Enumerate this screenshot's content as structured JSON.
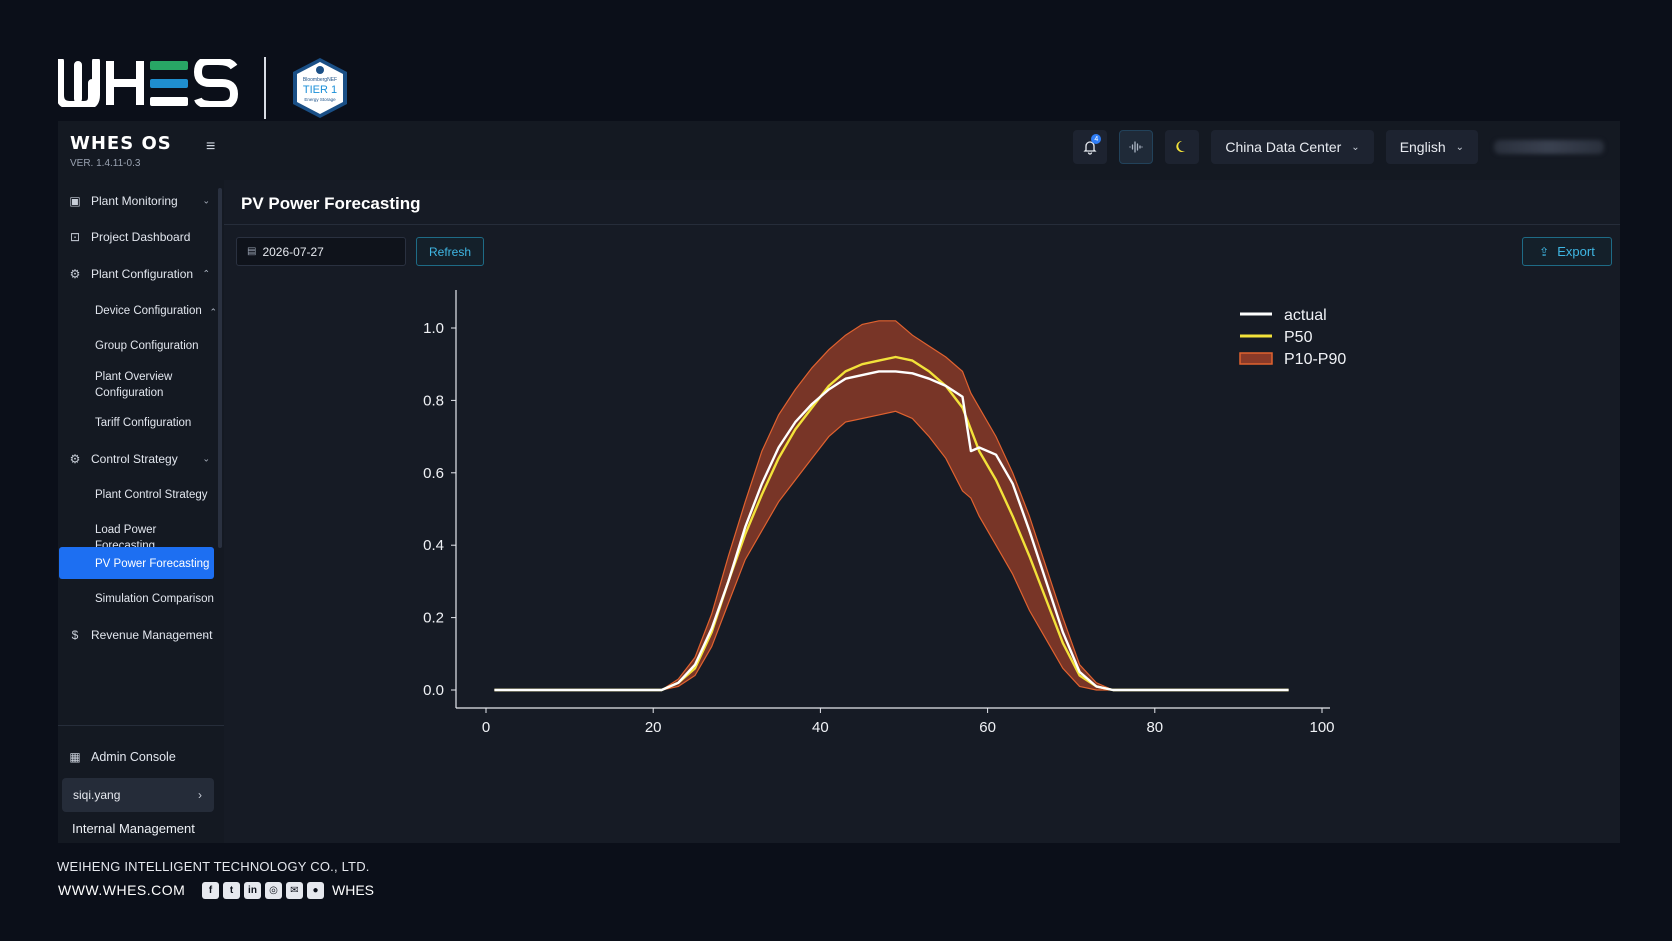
{
  "brand": {
    "logo_text": "WHES",
    "badge_line1": "BloombergNEF",
    "badge_line2": "TIER 1",
    "badge_line3": "Energy Storage"
  },
  "topbar": {
    "os_title": "WHES OS",
    "version": "VER. 1.4.11-0.3",
    "notification_count": "4",
    "data_center": "China Data Center",
    "language": "English"
  },
  "sidebar": {
    "items": [
      {
        "label": "Plant Monitoring",
        "icon": "monitor-icon"
      },
      {
        "label": "Project Dashboard",
        "icon": "dashboard-icon"
      },
      {
        "label": "Plant Configuration",
        "icon": "gear-icon"
      },
      {
        "label": "Control Strategy",
        "icon": "strategy-icon"
      },
      {
        "label": "Revenue Management",
        "icon": "dollar-icon"
      },
      {
        "label": "Admin Console",
        "icon": "grid-icon"
      }
    ],
    "sub_items": [
      "Device Configuration",
      "Group Configuration",
      "Plant Overview Configuration",
      "Tariff Configuration",
      "Plant Control Strategy",
      "Load Power Forecasting",
      "PV Power Forecasting",
      "Simulation Comparison"
    ],
    "user": "siqi.yang",
    "internal": "Internal Management"
  },
  "main": {
    "title": "PV Power Forecasting",
    "date": "2026-07-27",
    "refresh_label": "Refresh",
    "export_label": "Export"
  },
  "chart_data": {
    "type": "line",
    "title": "",
    "xlabel": "",
    "ylabel": "",
    "xlim": [
      0,
      100
    ],
    "ylim": [
      0,
      1.1
    ],
    "x_ticks": [
      "0",
      "20",
      "40",
      "60",
      "80",
      "100"
    ],
    "y_ticks": [
      "0.0",
      "0.2",
      "0.4",
      "0.6",
      "0.8",
      "1.0"
    ],
    "legend": {
      "position": "top-right",
      "entries": [
        "actual",
        "P50",
        "P10-P90"
      ]
    },
    "colors": {
      "actual": "#ffffff",
      "P50": "#f2e23a",
      "band_fill": "#8a3a28",
      "band_stroke": "#e0622f"
    },
    "x": [
      1,
      19,
      21,
      23,
      25,
      27,
      29,
      31,
      33,
      35,
      37,
      39,
      41,
      43,
      45,
      47,
      49,
      51,
      53,
      55,
      57,
      58,
      59,
      61,
      63,
      65,
      67,
      69,
      71,
      73,
      75,
      77,
      79,
      96
    ],
    "series": [
      {
        "name": "actual",
        "values": [
          0,
          0,
          0,
          0.02,
          0.07,
          0.17,
          0.3,
          0.45,
          0.57,
          0.67,
          0.74,
          0.79,
          0.83,
          0.86,
          0.87,
          0.88,
          0.88,
          0.875,
          0.86,
          0.84,
          0.81,
          0.66,
          0.67,
          0.65,
          0.57,
          0.44,
          0.3,
          0.16,
          0.05,
          0.01,
          0,
          0,
          0,
          0
        ]
      },
      {
        "name": "P50",
        "values": [
          0,
          0,
          0,
          0.02,
          0.06,
          0.16,
          0.3,
          0.43,
          0.54,
          0.64,
          0.72,
          0.78,
          0.84,
          0.88,
          0.9,
          0.91,
          0.92,
          0.91,
          0.88,
          0.84,
          0.78,
          0.72,
          0.66,
          0.58,
          0.48,
          0.37,
          0.25,
          0.13,
          0.04,
          0.01,
          0,
          0,
          0,
          0
        ]
      },
      {
        "name": "P10",
        "values": [
          0,
          0,
          0,
          0.01,
          0.04,
          0.12,
          0.24,
          0.36,
          0.44,
          0.52,
          0.58,
          0.64,
          0.7,
          0.74,
          0.75,
          0.76,
          0.77,
          0.75,
          0.7,
          0.64,
          0.55,
          0.53,
          0.48,
          0.4,
          0.32,
          0.22,
          0.14,
          0.06,
          0.01,
          0,
          0,
          0,
          0,
          0
        ]
      },
      {
        "name": "P90",
        "values": [
          0,
          0,
          0,
          0.03,
          0.09,
          0.21,
          0.37,
          0.52,
          0.66,
          0.76,
          0.83,
          0.89,
          0.94,
          0.98,
          1.01,
          1.02,
          1.02,
          0.98,
          0.95,
          0.92,
          0.88,
          0.82,
          0.78,
          0.7,
          0.6,
          0.48,
          0.34,
          0.2,
          0.07,
          0.02,
          0,
          0,
          0,
          0
        ]
      }
    ]
  },
  "footer": {
    "company": "WEIHENG INTELLIGENT TECHNOLOGY CO., LTD.",
    "url": "WWW.WHES.COM",
    "brand": "WHES",
    "socials": [
      "facebook-icon",
      "twitter-icon",
      "linkedin-icon",
      "instagram-icon",
      "wechat-icon",
      "line-icon"
    ]
  }
}
